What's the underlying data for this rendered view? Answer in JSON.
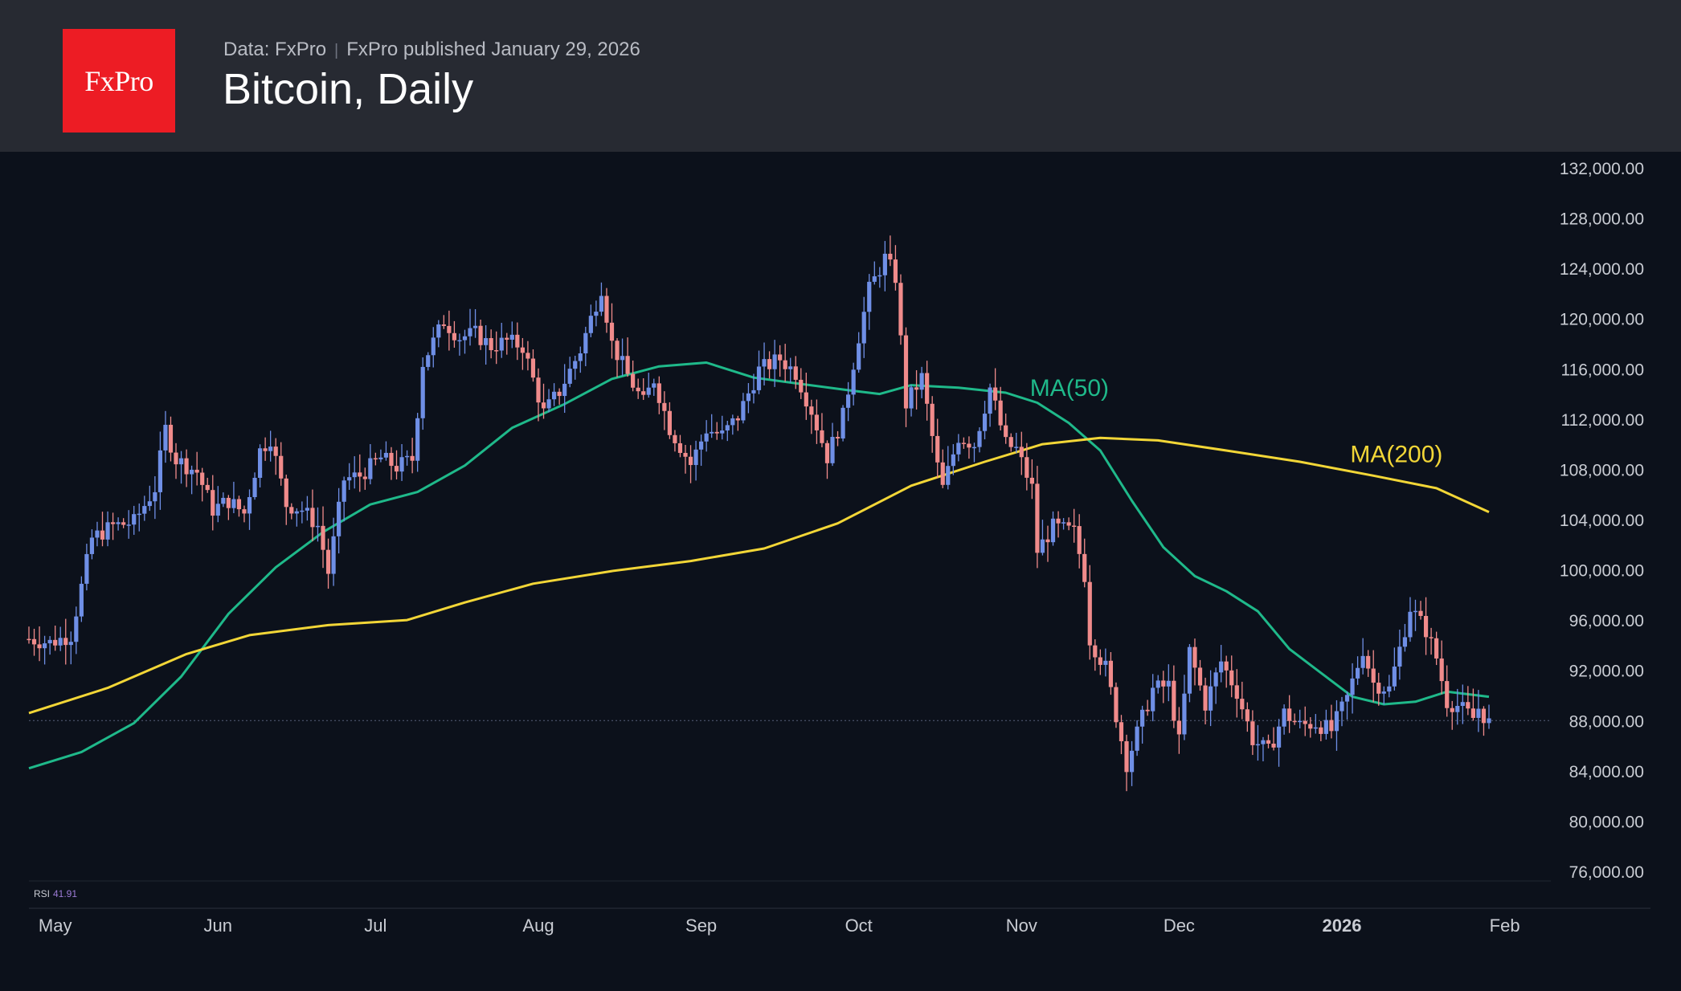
{
  "header": {
    "logo_text": "FxPro",
    "source": "Data: FxPro",
    "published": "FxPro published January 29, 2026",
    "title": "Bitcoin, Daily"
  },
  "colors": {
    "background": "#0c111b",
    "header_bg": "#272a32",
    "logo_bg": "#ed1c24",
    "up_candle": "#6f8fe6",
    "down_candle": "#f08b8b",
    "ma50": "#1fb98a",
    "ma200": "#f2d637",
    "axis_text": "#c9ccd3",
    "rsi_value": "#9c7bd6"
  },
  "rsi": {
    "label": "RSI",
    "value": "41.91"
  },
  "chart_data": {
    "type": "candlestick",
    "title": "Bitcoin, Daily",
    "ylim": [
      76000,
      132000
    ],
    "yticks": [
      "132,000.00",
      "128,000.00",
      "124,000.00",
      "120,000.00",
      "116,000.00",
      "112,000.00",
      "108,000.00",
      "104,000.00",
      "100,000.00",
      "96,000.00",
      "92,000.00",
      "88,000.00",
      "84,000.00",
      "80,000.00",
      "76,000.00"
    ],
    "xticks": [
      {
        "label": "May",
        "date": "2025-05-01"
      },
      {
        "label": "Jun",
        "date": "2025-06-01"
      },
      {
        "label": "Jul",
        "date": "2025-07-01"
      },
      {
        "label": "Aug",
        "date": "2025-08-01"
      },
      {
        "label": "Sep",
        "date": "2025-09-01"
      },
      {
        "label": "Oct",
        "date": "2025-10-01"
      },
      {
        "label": "Nov",
        "date": "2025-11-01"
      },
      {
        "label": "Dec",
        "date": "2025-12-01"
      },
      {
        "label": "2026",
        "date": "2026-01-01",
        "bold": true
      },
      {
        "label": "Feb",
        "date": "2026-02-01"
      }
    ],
    "last_price_line": 88000,
    "close_series": [
      [
        "2025-04-26",
        94500
      ],
      [
        "2025-04-30",
        94200
      ],
      [
        "2025-05-04",
        94800
      ],
      [
        "2025-05-08",
        102500
      ],
      [
        "2025-05-12",
        103500
      ],
      [
        "2025-05-16",
        103800
      ],
      [
        "2025-05-20",
        106500
      ],
      [
        "2025-05-22",
        111200
      ],
      [
        "2025-05-24",
        108800
      ],
      [
        "2025-05-28",
        107800
      ],
      [
        "2025-05-31",
        104800
      ],
      [
        "2025-06-03",
        105500
      ],
      [
        "2025-06-06",
        104500
      ],
      [
        "2025-06-09",
        109500
      ],
      [
        "2025-06-11",
        110500
      ],
      [
        "2025-06-14",
        105200
      ],
      [
        "2025-06-17",
        104800
      ],
      [
        "2025-06-20",
        103500
      ],
      [
        "2025-06-22",
        99800
      ],
      [
        "2025-06-25",
        107200
      ],
      [
        "2025-06-28",
        107500
      ],
      [
        "2025-07-02",
        108900
      ],
      [
        "2025-07-05",
        108200
      ],
      [
        "2025-07-08",
        108800
      ],
      [
        "2025-07-10",
        116500
      ],
      [
        "2025-07-14",
        119800
      ],
      [
        "2025-07-17",
        118500
      ],
      [
        "2025-07-20",
        118800
      ],
      [
        "2025-07-23",
        117800
      ],
      [
        "2025-07-26",
        118200
      ],
      [
        "2025-07-29",
        117800
      ],
      [
        "2025-08-02",
        112500
      ],
      [
        "2025-08-05",
        114200
      ],
      [
        "2025-08-09",
        117500
      ],
      [
        "2025-08-13",
        122500
      ],
      [
        "2025-08-15",
        118000
      ],
      [
        "2025-08-18",
        115500
      ],
      [
        "2025-08-21",
        113300
      ],
      [
        "2025-08-23",
        115200
      ],
      [
        "2025-08-26",
        111300
      ],
      [
        "2025-08-30",
        108400
      ],
      [
        "2025-09-02",
        111200
      ],
      [
        "2025-09-05",
        110700
      ],
      [
        "2025-09-08",
        112200
      ],
      [
        "2025-09-12",
        115900
      ],
      [
        "2025-09-16",
        116800
      ],
      [
        "2025-09-19",
        115700
      ],
      [
        "2025-09-22",
        112700
      ],
      [
        "2025-09-25",
        109000
      ],
      [
        "2025-09-28",
        112200
      ],
      [
        "2025-10-01",
        118600
      ],
      [
        "2025-10-03",
        122300
      ],
      [
        "2025-10-06",
        124800
      ],
      [
        "2025-10-08",
        123300
      ],
      [
        "2025-10-10",
        113200
      ],
      [
        "2025-10-13",
        115300
      ],
      [
        "2025-10-16",
        108200
      ],
      [
        "2025-10-17",
        106500
      ],
      [
        "2025-10-20",
        110600
      ],
      [
        "2025-10-23",
        110000
      ],
      [
        "2025-10-26",
        114500
      ],
      [
        "2025-10-29",
        110000
      ],
      [
        "2025-10-31",
        109600
      ],
      [
        "2025-11-03",
        106500
      ],
      [
        "2025-11-04",
        101500
      ],
      [
        "2025-11-07",
        103400
      ],
      [
        "2025-11-11",
        103000
      ],
      [
        "2025-11-13",
        99600
      ],
      [
        "2025-11-14",
        94500
      ],
      [
        "2025-11-17",
        92200
      ],
      [
        "2025-11-20",
        86500
      ],
      [
        "2025-11-21",
        84600
      ],
      [
        "2025-11-24",
        88200
      ],
      [
        "2025-11-26",
        90500
      ],
      [
        "2025-11-29",
        90800
      ],
      [
        "2025-12-01",
        86300
      ],
      [
        "2025-12-03",
        93500
      ],
      [
        "2025-12-06",
        89300
      ],
      [
        "2025-12-09",
        92700
      ],
      [
        "2025-12-12",
        90300
      ],
      [
        "2025-12-15",
        86500
      ],
      [
        "2025-12-18",
        85500
      ],
      [
        "2025-12-21",
        88600
      ],
      [
        "2025-12-24",
        87600
      ],
      [
        "2025-12-27",
        87800
      ],
      [
        "2025-12-30",
        87200
      ],
      [
        "2026-01-02",
        89800
      ],
      [
        "2026-01-05",
        93700
      ],
      [
        "2026-01-07",
        91000
      ],
      [
        "2026-01-10",
        90500
      ],
      [
        "2026-01-13",
        95300
      ],
      [
        "2026-01-14",
        97000
      ],
      [
        "2026-01-17",
        95200
      ],
      [
        "2026-01-19",
        93000
      ],
      [
        "2026-01-21",
        89500
      ],
      [
        "2026-01-23",
        89200
      ],
      [
        "2026-01-26",
        88200
      ],
      [
        "2026-01-27",
        89000
      ],
      [
        "2026-01-29",
        87800
      ]
    ],
    "series": [
      {
        "name": "MA(50)",
        "label_at": [
          "2025-10-29",
          114500
        ],
        "points": [
          [
            "2025-04-26",
            84200
          ],
          [
            "2025-05-06",
            85500
          ],
          [
            "2025-05-16",
            87800
          ],
          [
            "2025-05-25",
            91500
          ],
          [
            "2025-06-03",
            96500
          ],
          [
            "2025-06-12",
            100200
          ],
          [
            "2025-06-21",
            103000
          ],
          [
            "2025-06-30",
            105200
          ],
          [
            "2025-07-09",
            106200
          ],
          [
            "2025-07-18",
            108300
          ],
          [
            "2025-07-27",
            111300
          ],
          [
            "2025-08-06",
            113200
          ],
          [
            "2025-08-15",
            115200
          ],
          [
            "2025-08-24",
            116200
          ],
          [
            "2025-09-02",
            116500
          ],
          [
            "2025-09-11",
            115300
          ],
          [
            "2025-09-20",
            114800
          ],
          [
            "2025-09-29",
            114300
          ],
          [
            "2025-10-05",
            114000
          ],
          [
            "2025-10-11",
            114700
          ],
          [
            "2025-10-20",
            114500
          ],
          [
            "2025-10-29",
            114100
          ],
          [
            "2025-11-04",
            113300
          ],
          [
            "2025-11-10",
            111700
          ],
          [
            "2025-11-16",
            109500
          ],
          [
            "2025-11-22",
            105500
          ],
          [
            "2025-11-28",
            101800
          ],
          [
            "2025-12-04",
            99500
          ],
          [
            "2025-12-10",
            98300
          ],
          [
            "2025-12-16",
            96700
          ],
          [
            "2025-12-22",
            93700
          ],
          [
            "2025-12-28",
            91800
          ],
          [
            "2026-01-03",
            89900
          ],
          [
            "2026-01-09",
            89300
          ],
          [
            "2026-01-15",
            89500
          ],
          [
            "2026-01-21",
            90300
          ],
          [
            "2026-01-29",
            89900
          ]
        ]
      },
      {
        "name": "MA(200)",
        "label_at": [
          "2025-12-29",
          109200
        ],
        "points": [
          [
            "2025-04-26",
            88600
          ],
          [
            "2025-05-11",
            90600
          ],
          [
            "2025-05-26",
            93300
          ],
          [
            "2025-06-07",
            94800
          ],
          [
            "2025-06-22",
            95600
          ],
          [
            "2025-07-07",
            96000
          ],
          [
            "2025-07-18",
            97400
          ],
          [
            "2025-07-31",
            98900
          ],
          [
            "2025-08-15",
            99900
          ],
          [
            "2025-08-30",
            100700
          ],
          [
            "2025-09-13",
            101700
          ],
          [
            "2025-09-27",
            103700
          ],
          [
            "2025-10-11",
            106700
          ],
          [
            "2025-10-25",
            108600
          ],
          [
            "2025-11-05",
            110000
          ],
          [
            "2025-11-16",
            110500
          ],
          [
            "2025-11-27",
            110300
          ],
          [
            "2025-12-10",
            109500
          ],
          [
            "2025-12-24",
            108600
          ],
          [
            "2026-01-07",
            107500
          ],
          [
            "2026-01-19",
            106500
          ],
          [
            "2026-01-29",
            104600
          ]
        ]
      }
    ]
  }
}
